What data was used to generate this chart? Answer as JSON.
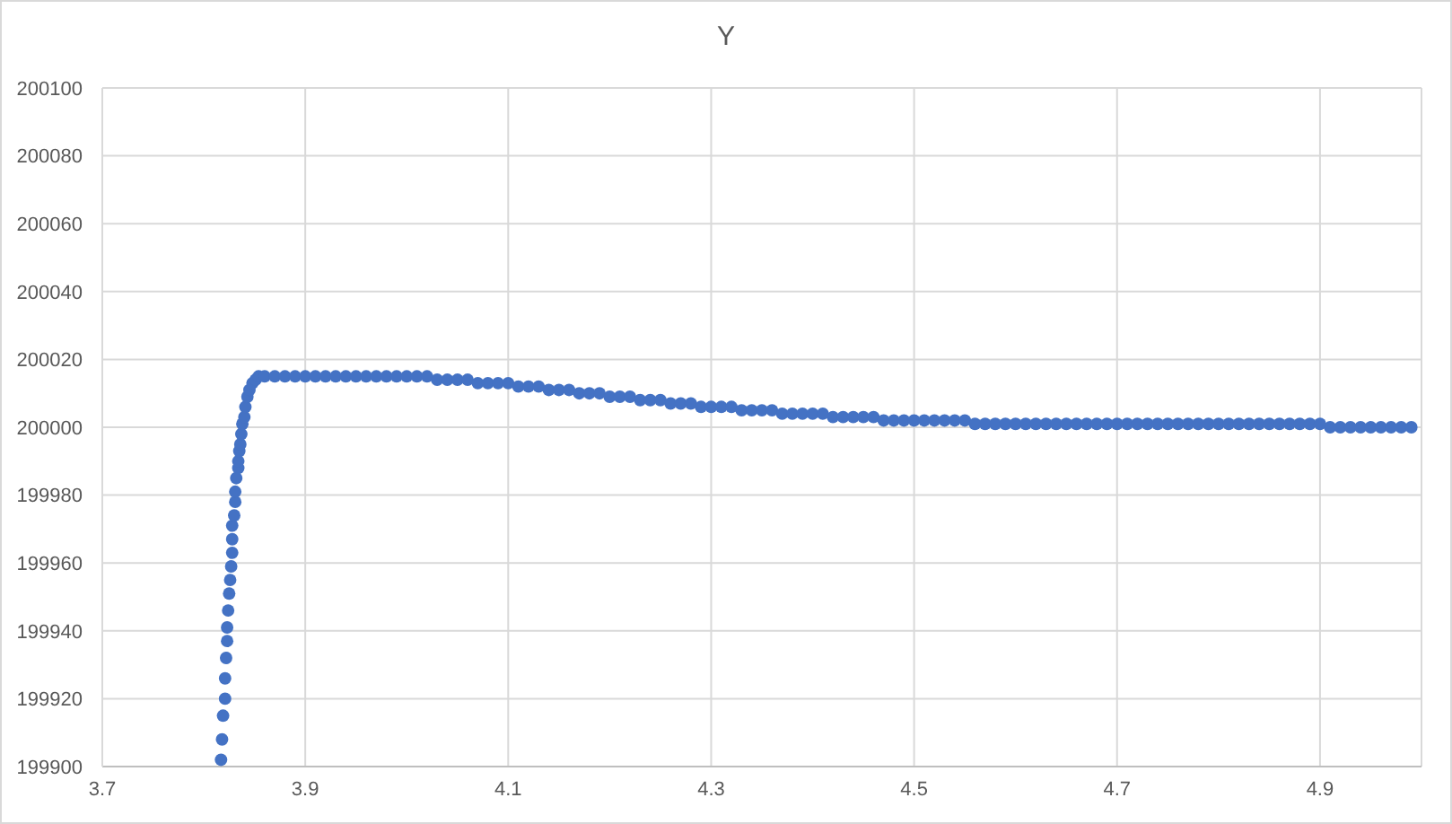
{
  "chart_data": {
    "type": "scatter",
    "title": "Y",
    "x": [
      3.817,
      3.818,
      3.819,
      3.821,
      3.821,
      3.822,
      3.823,
      3.823,
      3.824,
      3.825,
      3.826,
      3.827,
      3.828,
      3.828,
      3.828,
      3.83,
      3.831,
      3.831,
      3.832,
      3.834,
      3.834,
      3.835,
      3.836,
      3.837,
      3.838,
      3.84,
      3.841,
      3.843,
      3.845,
      3.848,
      3.851,
      3.854,
      3.86,
      3.87,
      3.88,
      3.89,
      3.9,
      3.91,
      3.92,
      3.93,
      3.94,
      3.95,
      3.96,
      3.97,
      3.98,
      3.99,
      4,
      4.01,
      4.02,
      4.03,
      4.04,
      4.05,
      4.06,
      4.07,
      4.08,
      4.09,
      4.1,
      4.11,
      4.12,
      4.13,
      4.14,
      4.15,
      4.16,
      4.17,
      4.18,
      4.19,
      4.2,
      4.21,
      4.22,
      4.23,
      4.24,
      4.25,
      4.26,
      4.27,
      4.28,
      4.29,
      4.3,
      4.31,
      4.32,
      4.33,
      4.34,
      4.35,
      4.36,
      4.37,
      4.38,
      4.39,
      4.4,
      4.41,
      4.42,
      4.43,
      4.44,
      4.45,
      4.46,
      4.47,
      4.48,
      4.49,
      4.5,
      4.51,
      4.52,
      4.53,
      4.54,
      4.55,
      4.56,
      4.57,
      4.58,
      4.59,
      4.6,
      4.61,
      4.62,
      4.63,
      4.64,
      4.65,
      4.66,
      4.67,
      4.68,
      4.69,
      4.7,
      4.71,
      4.72,
      4.73,
      4.74,
      4.75,
      4.76,
      4.77,
      4.78,
      4.79,
      4.8,
      4.81,
      4.82,
      4.83,
      4.84,
      4.85,
      4.86,
      4.87,
      4.88,
      4.89,
      4.9,
      4.91,
      4.92,
      4.93,
      4.94,
      4.95,
      4.96,
      4.97,
      4.98,
      4.99
    ],
    "series": [
      {
        "color": "#4472c4",
        "values": [
          199902,
          199908,
          199915,
          199920,
          199926,
          199932,
          199937,
          199941,
          199946,
          199951,
          199955,
          199959,
          199963,
          199967,
          199971,
          199974,
          199978,
          199981,
          199985,
          199988,
          199990,
          199993,
          199995,
          199998,
          200001,
          200003,
          200006,
          200009,
          200011,
          200013,
          200014,
          200015,
          200015,
          200015,
          200015,
          200015,
          200015,
          200015,
          200015,
          200015,
          200015,
          200015,
          200015,
          200015,
          200015,
          200015,
          200015,
          200015,
          200015,
          200014,
          200014,
          200014,
          200014,
          200013,
          200013,
          200013,
          200013,
          200012,
          200012,
          200012,
          200011,
          200011,
          200011,
          200010,
          200010,
          200010,
          200009,
          200009,
          200009,
          200008,
          200008,
          200008,
          200007,
          200007,
          200007,
          200006,
          200006,
          200006,
          200006,
          200005,
          200005,
          200005,
          200005,
          200004,
          200004,
          200004,
          200004,
          200004,
          200003,
          200003,
          200003,
          200003,
          200003,
          200002,
          200002,
          200002,
          200002,
          200002,
          200002,
          200002,
          200002,
          200002,
          200001,
          200001,
          200001,
          200001,
          200001,
          200001,
          200001,
          200001,
          200001,
          200001,
          200001,
          200001,
          200001,
          200001,
          200001,
          200001,
          200001,
          200001,
          200001,
          200001,
          200001,
          200001,
          200001,
          200001,
          200001,
          200001,
          200001,
          200001,
          200001,
          200001,
          200001,
          200001,
          200001,
          200001,
          200001,
          200000,
          200000,
          200000,
          200000,
          200000,
          200000,
          200000,
          200000,
          200000
        ]
      }
    ],
    "xlim": [
      3.7,
      5.0
    ],
    "xticks": [
      3.7,
      3.9,
      4.1,
      4.3,
      4.5,
      4.7,
      4.9
    ],
    "ylim": [
      199900,
      200100
    ],
    "yticks": [
      199900,
      199920,
      199940,
      199960,
      199980,
      200000,
      200020,
      200040,
      200060,
      200080,
      200100
    ],
    "grid": true,
    "marker": "circle"
  }
}
